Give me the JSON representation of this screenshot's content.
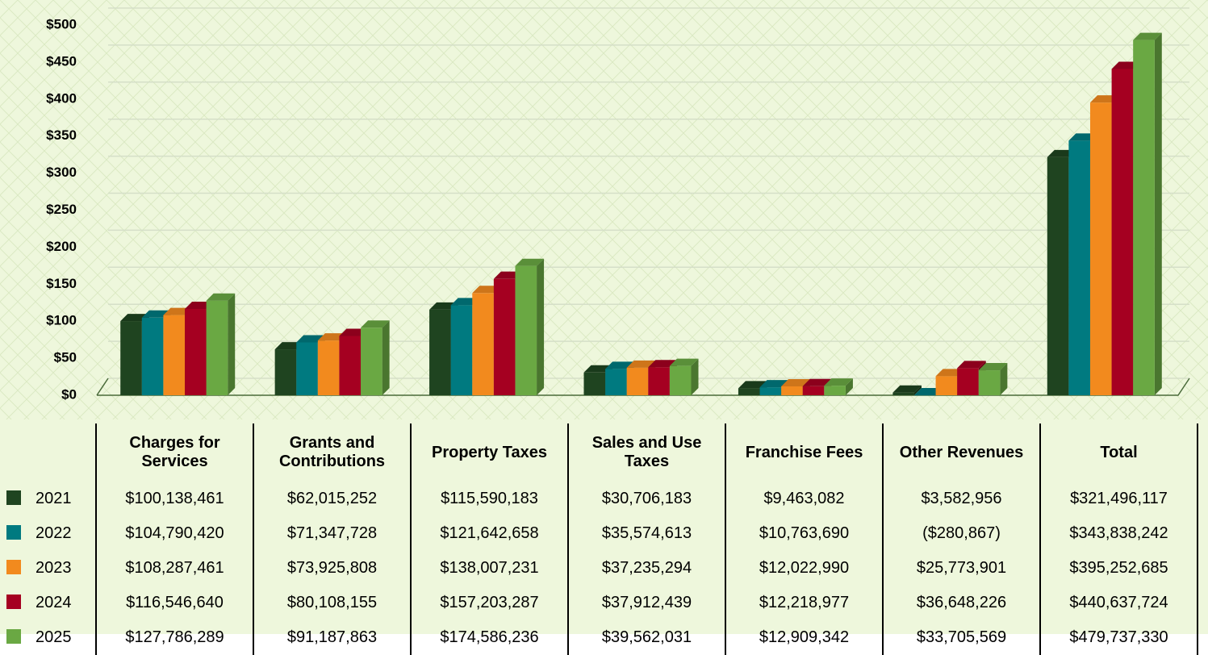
{
  "chart_data": {
    "type": "bar",
    "categories": [
      "Charges for Services",
      "Grants and Contributions",
      "Property Taxes",
      "Sales and Use Taxes",
      "Franchise Fees",
      "Other Revenues",
      "Total"
    ],
    "series": [
      {
        "name": "2021",
        "color": "#1f4420",
        "values": [
          100.138461,
          62.015252,
          115.590183,
          30.706183,
          9.463082,
          3.582956,
          321.496117
        ],
        "value_labels": [
          "$100,138,461",
          "$62,015,252",
          "$115,590,183",
          "$30,706,183",
          "$9,463,082",
          "$3,582,956",
          "$321,496,117"
        ]
      },
      {
        "name": "2022",
        "color": "#007a80",
        "values": [
          104.79042,
          71.347728,
          121.642658,
          35.574613,
          10.76369,
          -0.280867,
          343.838242
        ],
        "value_labels": [
          "$104,790,420",
          "$71,347,728",
          "$121,642,658",
          "$35,574,613",
          "$10,763,690",
          "($280,867)",
          "$343,838,242"
        ]
      },
      {
        "name": "2023",
        "color": "#f28a1e",
        "values": [
          108.287461,
          73.925808,
          138.007231,
          37.235294,
          12.02299,
          25.773901,
          395.252685
        ],
        "value_labels": [
          "$108,287,461",
          "$73,925,808",
          "$138,007,231",
          "$37,235,294",
          "$12,022,990",
          "$25,773,901",
          "$395,252,685"
        ]
      },
      {
        "name": "2024",
        "color": "#a50021",
        "values": [
          116.54664,
          80.108155,
          157.203287,
          37.912439,
          12.218977,
          36.648226,
          440.637724
        ],
        "value_labels": [
          "$116,546,640",
          "$80,108,155",
          "$157,203,287",
          "$37,912,439",
          "$12,218,977",
          "$36,648,226",
          "$440,637,724"
        ]
      },
      {
        "name": "2025",
        "color": "#6aa843",
        "values": [
          127.786289,
          91.187863,
          174.586236,
          39.562031,
          12.909342,
          33.705569,
          479.73733
        ],
        "value_labels": [
          "$127,786,289",
          "$91,187,863",
          "$174,586,236",
          "$39,562,031",
          "$12,909,342",
          "$33,705,569",
          "$479,737,330"
        ]
      }
    ],
    "ylim": [
      0,
      500
    ],
    "yticks": [
      {
        "value": 0,
        "label": "$0"
      },
      {
        "value": 50,
        "label": "$50"
      },
      {
        "value": 100,
        "label": "$100"
      },
      {
        "value": 150,
        "label": "$150"
      },
      {
        "value": 200,
        "label": "$200"
      },
      {
        "value": 250,
        "label": "$250"
      },
      {
        "value": 300,
        "label": "$300"
      },
      {
        "value": 350,
        "label": "$350"
      },
      {
        "value": 400,
        "label": "$400"
      },
      {
        "value": 450,
        "label": "$450"
      },
      {
        "value": 500,
        "label": "$500"
      }
    ],
    "grid": true
  }
}
